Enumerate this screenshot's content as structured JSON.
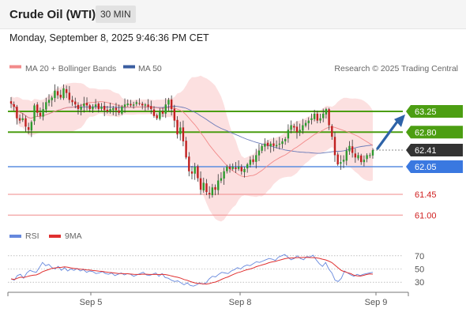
{
  "header": {
    "title": "Crude Oil (WTI)",
    "timeframe": "30 MIN",
    "datetime": "Monday, September 8, 2025 9:46:36 PM CET"
  },
  "credit": "Research © 2025 Trading Central",
  "colors": {
    "green": "#4c9e12",
    "blue_level": "#5b8de0",
    "red_level": "#f08a8a",
    "ma20": "#f28a8a",
    "ma50": "#6a7ab8",
    "band": "#fbd5d5",
    "arrow": "#2e63a8",
    "current": "#333333",
    "rsi": "#6688dd",
    "rsi_ma": "#e03030",
    "candle_up": "#2e9a2e",
    "candle_down": "#c02020"
  },
  "chart_data": [
    {
      "type": "candlestick",
      "legend": [
        "MA 20 + Bollinger Bands",
        "MA 50"
      ],
      "x_ticks": [
        "Sep 5",
        "Sep 8",
        "Sep 9"
      ],
      "levels": [
        {
          "value": 63.25,
          "label": "63.25",
          "style": "resistance"
        },
        {
          "value": 62.8,
          "label": "62.80",
          "style": "resistance"
        },
        {
          "value": 62.41,
          "label": "62.41",
          "style": "current"
        },
        {
          "value": 62.05,
          "label": "62.05",
          "style": "pivot"
        },
        {
          "value": 61.45,
          "label": "61.45",
          "style": "support"
        },
        {
          "value": 61.0,
          "label": "61.00",
          "style": "support"
        }
      ],
      "y_range": [
        60.85,
        64.1
      ],
      "close": [
        63.42,
        63.35,
        63.1,
        63.05,
        63.1,
        62.92,
        62.85,
        63.02,
        63.38,
        63.22,
        63.15,
        63.3,
        63.45,
        63.5,
        63.55,
        63.7,
        63.6,
        63.55,
        63.75,
        63.65,
        63.5,
        63.45,
        63.4,
        63.3,
        63.35,
        63.42,
        63.38,
        63.3,
        63.35,
        63.4,
        63.3,
        63.35,
        63.28,
        63.25,
        63.3,
        63.32,
        63.28,
        63.22,
        63.35,
        63.4,
        63.42,
        63.38,
        63.4,
        63.45,
        63.42,
        63.38,
        63.4,
        63.35,
        63.3,
        63.15,
        63.1,
        63.25,
        63.2,
        63.4,
        63.5,
        63.3,
        63.05,
        62.75,
        62.9,
        62.6,
        62.25,
        61.95,
        61.9,
        62.05,
        61.8,
        61.55,
        61.7,
        61.5,
        61.45,
        61.6,
        61.55,
        61.75,
        61.8,
        61.95,
        62.05,
        62.0,
        62.05,
        62.0,
        62.05,
        61.95,
        62.0,
        62.1,
        62.2,
        62.15,
        62.3,
        62.4,
        62.5,
        62.55,
        62.5,
        62.55,
        62.5,
        62.52,
        62.55,
        62.6,
        62.65,
        62.85,
        62.95,
        62.9,
        62.8,
        62.85,
        62.95,
        63.0,
        63.05,
        63.1,
        63.2,
        63.05,
        63.1,
        63.2,
        63.3,
        62.95,
        62.7,
        62.3,
        62.1,
        62.15,
        62.2,
        62.4,
        62.5,
        62.35,
        62.25,
        62.3,
        62.15,
        62.2,
        62.3,
        62.3,
        62.41
      ]
    },
    {
      "type": "line",
      "legend": [
        "RSI",
        "9MA"
      ],
      "y_ticks": [
        70,
        50,
        30
      ],
      "y_range": [
        17,
        83
      ],
      "rsi": [
        35,
        33,
        40,
        42,
        36,
        44,
        48,
        46,
        45,
        52,
        60,
        55,
        57,
        52,
        50,
        54,
        48,
        52,
        47,
        50,
        48,
        51,
        47,
        49,
        45,
        47,
        46,
        43,
        44,
        46,
        43,
        42,
        44,
        40,
        42,
        44,
        41,
        43,
        42,
        39,
        41,
        43,
        45,
        41,
        40,
        42,
        44,
        39,
        43,
        37,
        36,
        33,
        31,
        32,
        29,
        26,
        29,
        25,
        24,
        26,
        29,
        27,
        29,
        35,
        39,
        38,
        42,
        45,
        44,
        43,
        47,
        49,
        52,
        50,
        54,
        56,
        55,
        58,
        61,
        60,
        62,
        64,
        66,
        65,
        63,
        68,
        70,
        72,
        68,
        64,
        66,
        70,
        66,
        64,
        69,
        68,
        71,
        64,
        58,
        54,
        60,
        50,
        44,
        33,
        31,
        36,
        47,
        44,
        41,
        39,
        42,
        40,
        42,
        43,
        44,
        45
      ]
    }
  ]
}
